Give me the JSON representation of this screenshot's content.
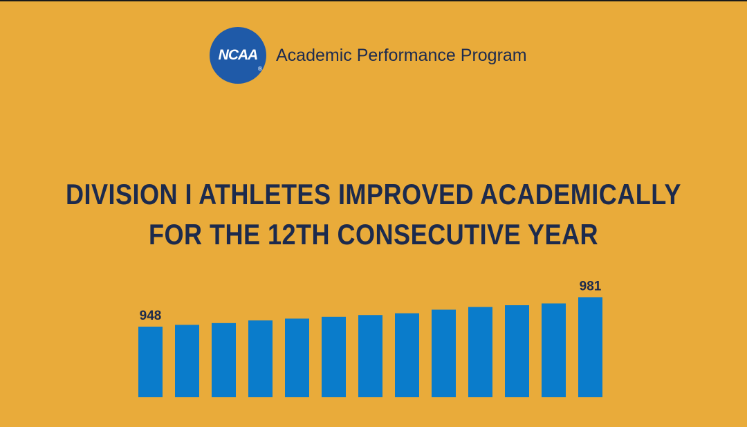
{
  "header": {
    "logo_text": "NCAA",
    "logo_registered": "®",
    "program_name": "Academic Performance Program"
  },
  "headline": {
    "line1": "DIVISION I ATHLETES IMPROVED ACADEMICALLY",
    "line2": "FOR THE 12TH CONSECUTIVE YEAR"
  },
  "colors": {
    "background": "#e9ab3a",
    "bar": "#0a7ccb",
    "text": "#1c2a4d",
    "logo": "#1f5aa8"
  },
  "chart_data": {
    "type": "bar",
    "title": "",
    "xlabel": "",
    "ylabel": "",
    "categories": [
      "",
      "",
      "",
      "",
      "",
      "",
      "",
      "",
      "",
      "",
      "",
      "",
      ""
    ],
    "values": [
      948,
      950,
      952,
      955,
      957,
      959,
      961,
      963,
      967,
      970,
      972,
      974,
      981
    ],
    "data_labels": [
      "948",
      "",
      "",
      "",
      "",
      "",
      "",
      "",
      "",
      "",
      "",
      "",
      "981"
    ],
    "grid": false,
    "legend": "none"
  }
}
